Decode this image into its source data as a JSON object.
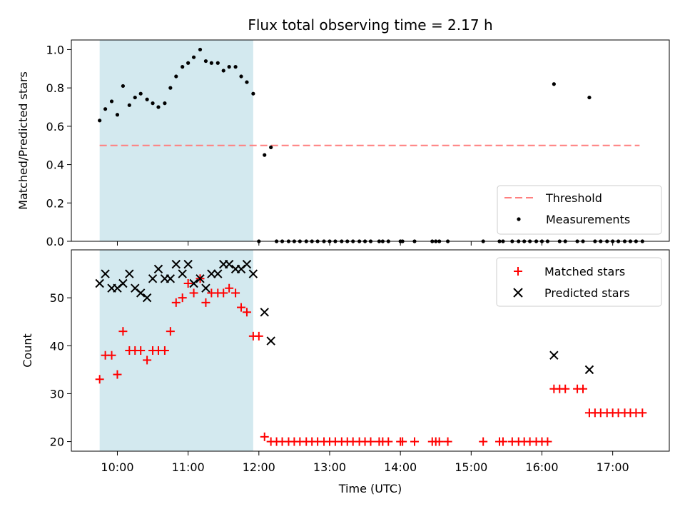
{
  "chart_data": [
    {
      "type": "scatter",
      "title": "Flux total observing time = 2.17 h",
      "xlabel": "",
      "ylabel": "Matched/Predicted stars",
      "ylim": [
        0,
        1.05
      ],
      "yticks": [
        "0.0",
        "0.2",
        "0.4",
        "0.6",
        "0.8",
        "1.0"
      ],
      "xlim": [
        9.35,
        17.8
      ],
      "shaded_span": [
        9.75,
        11.92
      ],
      "shade_color": "#d3e9ef",
      "threshold": {
        "name": "Threshold",
        "value": 0.5,
        "x": [
          9.75,
          17.38
        ],
        "color": "#ff7f7f"
      },
      "legend": {
        "placement": "lower right",
        "entries": [
          "Threshold",
          "Measurements"
        ]
      },
      "series": [
        {
          "name": "Measurements",
          "color": "#000000",
          "x": [
            9.75,
            9.83,
            9.92,
            10.0,
            10.08,
            10.17,
            10.25,
            10.33,
            10.42,
            10.5,
            10.58,
            10.67,
            10.75,
            10.83,
            10.92,
            11.0,
            11.08,
            11.17,
            11.25,
            11.33,
            11.42,
            11.5,
            11.58,
            11.67,
            11.75,
            11.83,
            11.92,
            12.0,
            12.08,
            12.17,
            12.25,
            12.33,
            12.42,
            12.5,
            12.58,
            12.67,
            12.75,
            12.83,
            12.92,
            13.0,
            13.08,
            13.17,
            13.25,
            13.33,
            13.42,
            13.5,
            13.58,
            13.7,
            13.75,
            13.83,
            14.0,
            14.03,
            14.2,
            14.45,
            14.5,
            14.55,
            14.67,
            15.17,
            15.4,
            15.45,
            15.58,
            15.67,
            15.75,
            15.83,
            15.92,
            16.0,
            16.08,
            16.17,
            16.25,
            16.33,
            16.5,
            16.58,
            16.67,
            16.75,
            16.83,
            16.92,
            17.0,
            17.08,
            17.17,
            17.25,
            17.33,
            17.42
          ],
          "y": [
            0.63,
            0.69,
            0.73,
            0.66,
            0.81,
            0.71,
            0.75,
            0.77,
            0.74,
            0.72,
            0.7,
            0.72,
            0.8,
            0.86,
            0.91,
            0.93,
            0.96,
            1.0,
            0.94,
            0.93,
            0.93,
            0.89,
            0.91,
            0.91,
            0.86,
            0.83,
            0.77,
            0.0,
            0.45,
            0.49,
            0.0,
            0.0,
            0.0,
            0.0,
            0.0,
            0.0,
            0.0,
            0.0,
            0.0,
            0.0,
            0.0,
            0.0,
            0.0,
            0.0,
            0.0,
            0.0,
            0.0,
            0.0,
            0.0,
            0.0,
            0.0,
            0.0,
            0.0,
            0.0,
            0.0,
            0.0,
            0.0,
            0.0,
            0.0,
            0.0,
            0.0,
            0.0,
            0.0,
            0.0,
            0.0,
            0.0,
            0.0,
            0.82,
            0.0,
            0.0,
            0.0,
            0.0,
            0.75,
            0.0,
            0.0,
            0.0,
            0.0,
            0.0,
            0.0,
            0.0,
            0.0,
            0.0
          ]
        }
      ]
    },
    {
      "type": "scatter",
      "title": "",
      "xlabel": "Time (UTC)",
      "ylabel": "Count",
      "ylim": [
        18,
        60
      ],
      "yticks": [
        "20",
        "30",
        "40",
        "50"
      ],
      "xlim": [
        9.35,
        17.8
      ],
      "xticks": [
        "10:00",
        "11:00",
        "12:00",
        "13:00",
        "14:00",
        "15:00",
        "16:00",
        "17:00"
      ],
      "shaded_span": [
        9.75,
        11.92
      ],
      "shade_color": "#d3e9ef",
      "legend": {
        "placement": "upper right",
        "entries": [
          "Matched stars",
          "Predicted stars"
        ]
      },
      "series": [
        {
          "name": "Matched stars",
          "marker": "plus",
          "color": "#ff0000",
          "x": [
            9.75,
            9.83,
            9.92,
            10.0,
            10.08,
            10.17,
            10.25,
            10.33,
            10.42,
            10.5,
            10.58,
            10.67,
            10.75,
            10.83,
            10.92,
            11.0,
            11.08,
            11.17,
            11.25,
            11.33,
            11.42,
            11.5,
            11.58,
            11.67,
            11.75,
            11.83,
            11.92,
            12.0,
            12.08,
            12.17,
            12.25,
            12.33,
            12.42,
            12.5,
            12.58,
            12.67,
            12.75,
            12.83,
            12.92,
            13.0,
            13.08,
            13.17,
            13.25,
            13.33,
            13.42,
            13.5,
            13.58,
            13.7,
            13.75,
            13.83,
            14.0,
            14.03,
            14.2,
            14.45,
            14.5,
            14.55,
            14.67,
            15.17,
            15.4,
            15.45,
            15.58,
            15.67,
            15.75,
            15.83,
            15.92,
            16.0,
            16.08,
            16.17,
            16.25,
            16.33,
            16.5,
            16.58,
            16.67,
            16.75,
            16.83,
            16.92,
            17.0,
            17.08,
            17.17,
            17.25,
            17.33,
            17.42
          ],
          "y": [
            33,
            38,
            38,
            34,
            43,
            39,
            39,
            39,
            37,
            39,
            39,
            39,
            43,
            49,
            50,
            53,
            51,
            54,
            49,
            51,
            51,
            51,
            52,
            51,
            48,
            47,
            42,
            42,
            21,
            20,
            20,
            20,
            20,
            20,
            20,
            20,
            20,
            20,
            20,
            20,
            20,
            20,
            20,
            20,
            20,
            20,
            20,
            20,
            20,
            20,
            20,
            20,
            20,
            20,
            20,
            20,
            20,
            20,
            20,
            20,
            20,
            20,
            20,
            20,
            20,
            20,
            20,
            31,
            31,
            31,
            31,
            31,
            26,
            26,
            26,
            26,
            26,
            26,
            26,
            26,
            26,
            26
          ]
        },
        {
          "name": "Predicted stars",
          "marker": "x",
          "color": "#000000",
          "x": [
            9.75,
            9.83,
            9.92,
            10.0,
            10.08,
            10.17,
            10.25,
            10.33,
            10.42,
            10.5,
            10.58,
            10.67,
            10.75,
            10.83,
            10.92,
            11.0,
            11.08,
            11.17,
            11.25,
            11.33,
            11.42,
            11.5,
            11.58,
            11.67,
            11.75,
            11.83,
            11.92,
            12.08,
            12.17,
            16.17,
            16.67
          ],
          "y": [
            53,
            55,
            52,
            52,
            53,
            55,
            52,
            51,
            50,
            54,
            56,
            54,
            54,
            57,
            55,
            57,
            53,
            54,
            52,
            55,
            55,
            57,
            57,
            56,
            56,
            57,
            55,
            47,
            41,
            38,
            35
          ]
        }
      ]
    }
  ]
}
